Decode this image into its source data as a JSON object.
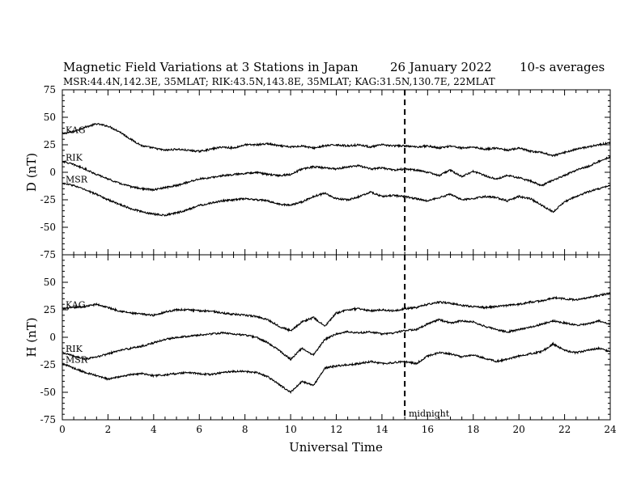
{
  "title": "Magnetic Field Variations at 3 Stations in Japan",
  "date": "26 January 2022",
  "averaging": "10-s averages",
  "stations_line": "MSR:44.4N,142.3E, 35MLAT;  RIK:43.5N,143.8E, 35MLAT;  KAG:31.5N,130.7E, 22MLAT",
  "xlabel": "Universal Time",
  "midnight_label": "midnight",
  "chart_data": [
    {
      "type": "line",
      "panel": "top",
      "ylabel": "D (nT)",
      "ylim": [
        -75,
        75
      ],
      "yticks": [
        "75",
        "50",
        "25",
        "0",
        "-25",
        "-50",
        "-75"
      ],
      "xlim": [
        0,
        24
      ],
      "xticks": [
        "0",
        "2",
        "4",
        "6",
        "8",
        "10",
        "12",
        "14",
        "16",
        "18",
        "20",
        "22",
        "24"
      ],
      "marker_x": 15,
      "series": [
        {
          "name": "KAG",
          "x": [
            0,
            0.5,
            1,
            1.5,
            2,
            2.5,
            3,
            3.5,
            4,
            4.5,
            5,
            5.5,
            6,
            6.5,
            7,
            7.5,
            8,
            8.5,
            9,
            9.5,
            10,
            10.5,
            11,
            11.5,
            12,
            12.5,
            13,
            13.5,
            14,
            14.5,
            15,
            15.5,
            16,
            16.5,
            17,
            17.5,
            18,
            18.5,
            19,
            19.5,
            20,
            20.5,
            21,
            21.5,
            22,
            22.5,
            23,
            23.5,
            24
          ],
          "values": [
            35,
            37,
            41,
            44,
            42,
            37,
            30,
            24,
            22,
            20,
            21,
            20,
            19,
            21,
            23,
            22,
            25,
            25,
            26,
            24,
            23,
            24,
            22,
            24,
            25,
            24,
            25,
            23,
            25,
            24,
            24,
            23,
            24,
            22,
            24,
            22,
            23,
            21,
            22,
            20,
            22,
            19,
            18,
            15,
            18,
            21,
            23,
            25,
            27
          ]
        },
        {
          "name": "RIK",
          "x": [
            0,
            0.5,
            1,
            1.5,
            2,
            2.5,
            3,
            3.5,
            4,
            4.5,
            5,
            5.5,
            6,
            6.5,
            7,
            7.5,
            8,
            8.5,
            9,
            9.5,
            10,
            10.5,
            11,
            11.5,
            12,
            12.5,
            13,
            13.5,
            14,
            14.5,
            15,
            15.5,
            16,
            16.5,
            17,
            17.5,
            18,
            18.5,
            19,
            19.5,
            20,
            20.5,
            21,
            21.5,
            22,
            22.5,
            23,
            23.5,
            24
          ],
          "values": [
            10,
            7,
            3,
            -2,
            -6,
            -10,
            -13,
            -15,
            -16,
            -14,
            -12,
            -9,
            -6,
            -5,
            -3,
            -2,
            -1,
            0,
            -2,
            -3,
            -2,
            3,
            5,
            4,
            3,
            5,
            6,
            3,
            4,
            2,
            3,
            2,
            0,
            -3,
            2,
            -4,
            1,
            -3,
            -6,
            -3,
            -5,
            -8,
            -12,
            -7,
            -3,
            2,
            5,
            10,
            14
          ]
        },
        {
          "name": "MSR",
          "x": [
            0,
            0.5,
            1,
            1.5,
            2,
            2.5,
            3,
            3.5,
            4,
            4.5,
            5,
            5.5,
            6,
            6.5,
            7,
            7.5,
            8,
            8.5,
            9,
            9.5,
            10,
            10.5,
            11,
            11.5,
            12,
            12.5,
            13,
            13.5,
            14,
            14.5,
            15,
            15.5,
            16,
            16.5,
            17,
            17.5,
            18,
            18.5,
            19,
            19.5,
            20,
            20.5,
            21,
            21.5,
            22,
            22.5,
            23,
            23.5,
            24
          ],
          "values": [
            -10,
            -12,
            -16,
            -20,
            -25,
            -29,
            -33,
            -36,
            -38,
            -39,
            -37,
            -34,
            -30,
            -28,
            -26,
            -25,
            -24,
            -25,
            -26,
            -29,
            -30,
            -27,
            -22,
            -19,
            -24,
            -25,
            -22,
            -18,
            -22,
            -21,
            -22,
            -24,
            -26,
            -23,
            -20,
            -25,
            -24,
            -22,
            -23,
            -26,
            -22,
            -24,
            -30,
            -36,
            -27,
            -22,
            -18,
            -15,
            -12
          ]
        }
      ]
    },
    {
      "type": "line",
      "panel": "bottom",
      "ylabel": "H (nT)",
      "ylim": [
        -75,
        75
      ],
      "yticks": [
        "50",
        "25",
        "0",
        "-25",
        "-50",
        "-75"
      ],
      "xlim": [
        0,
        24
      ],
      "xticks": [
        "0",
        "2",
        "4",
        "6",
        "8",
        "10",
        "12",
        "14",
        "16",
        "18",
        "20",
        "22",
        "24"
      ],
      "marker_x": 15,
      "series": [
        {
          "name": "KAG",
          "x": [
            0,
            0.5,
            1,
            1.5,
            2,
            2.5,
            3,
            3.5,
            4,
            4.5,
            5,
            5.5,
            6,
            6.5,
            7,
            7.5,
            8,
            8.5,
            9,
            9.5,
            10,
            10.5,
            11,
            11.5,
            12,
            12.5,
            13,
            13.5,
            14,
            14.5,
            15,
            15.5,
            16,
            16.5,
            17,
            17.5,
            18,
            18.5,
            19,
            19.5,
            20,
            20.5,
            21,
            21.5,
            22,
            22.5,
            23,
            23.5,
            24
          ],
          "values": [
            26,
            27,
            28,
            30,
            27,
            24,
            22,
            21,
            20,
            23,
            25,
            25,
            24,
            24,
            22,
            21,
            20,
            19,
            16,
            10,
            6,
            14,
            18,
            10,
            22,
            25,
            26,
            24,
            25,
            24,
            26,
            27,
            30,
            32,
            31,
            29,
            28,
            27,
            28,
            29,
            30,
            32,
            33,
            36,
            35,
            34,
            36,
            38,
            40
          ]
        },
        {
          "name": "RIK",
          "x": [
            0,
            0.5,
            1,
            1.5,
            2,
            2.5,
            3,
            3.5,
            4,
            4.5,
            5,
            5.5,
            6,
            6.5,
            7,
            7.5,
            8,
            8.5,
            9,
            9.5,
            10,
            10.5,
            11,
            11.5,
            12,
            12.5,
            13,
            13.5,
            14,
            14.5,
            15,
            15.5,
            16,
            16.5,
            17,
            17.5,
            18,
            18.5,
            19,
            19.5,
            20,
            20.5,
            21,
            21.5,
            22,
            22.5,
            23,
            23.5,
            24
          ],
          "values": [
            -14,
            -17,
            -20,
            -18,
            -15,
            -12,
            -10,
            -8,
            -5,
            -2,
            0,
            1,
            2,
            3,
            4,
            3,
            2,
            0,
            -5,
            -12,
            -20,
            -10,
            -16,
            -2,
            3,
            5,
            4,
            5,
            3,
            4,
            6,
            7,
            12,
            16,
            13,
            15,
            14,
            10,
            7,
            5,
            7,
            9,
            12,
            15,
            13,
            11,
            12,
            15,
            12
          ]
        },
        {
          "name": "MSR",
          "x": [
            0,
            0.5,
            1,
            1.5,
            2,
            2.5,
            3,
            3.5,
            4,
            4.5,
            5,
            5.5,
            6,
            6.5,
            7,
            7.5,
            8,
            8.5,
            9,
            9.5,
            10,
            10.5,
            11,
            11.5,
            12,
            12.5,
            13,
            13.5,
            14,
            14.5,
            15,
            15.5,
            16,
            16.5,
            17,
            17.5,
            18,
            18.5,
            19,
            19.5,
            20,
            20.5,
            21,
            21.5,
            22,
            22.5,
            23,
            23.5,
            24
          ],
          "values": [
            -24,
            -28,
            -32,
            -35,
            -38,
            -36,
            -34,
            -33,
            -35,
            -34,
            -33,
            -32,
            -33,
            -34,
            -32,
            -31,
            -31,
            -32,
            -36,
            -43,
            -50,
            -40,
            -44,
            -28,
            -26,
            -25,
            -24,
            -22,
            -24,
            -23,
            -22,
            -24,
            -17,
            -14,
            -15,
            -18,
            -16,
            -19,
            -22,
            -20,
            -17,
            -15,
            -13,
            -6,
            -12,
            -14,
            -12,
            -10,
            -13
          ]
        }
      ]
    }
  ]
}
